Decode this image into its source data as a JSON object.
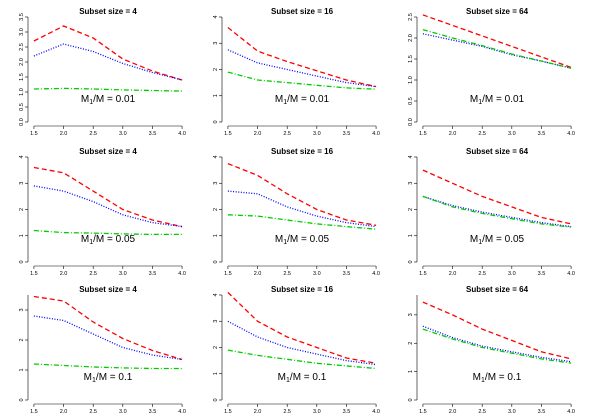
{
  "chart_data": {
    "type": "line",
    "x_ticks": [
      "1.5",
      "2.0",
      "2.5",
      "3.0",
      "3.5",
      "4.0"
    ],
    "series_styles": [
      {
        "key": "red",
        "color": "#ff0000",
        "dash": "dashed"
      },
      {
        "key": "blue",
        "color": "#0000ff",
        "dash": "dotted"
      },
      {
        "key": "green",
        "color": "#00cc00",
        "dash": "dotdash"
      }
    ],
    "panels": [
      {
        "title": "Subset size = 4",
        "annotation_main": "M",
        "annotation_sub": "1",
        "annotation_rest": "/M = 0.01",
        "ylim": [
          0,
          3.5
        ],
        "y_ticks": [
          "0.0",
          "0.5",
          "1.0",
          "1.5",
          "2.0",
          "2.5",
          "3.0",
          "3.5"
        ],
        "x": [
          1.5,
          2.0,
          2.5,
          3.0,
          3.5,
          4.0
        ],
        "red": [
          2.7,
          3.2,
          2.8,
          2.1,
          1.7,
          1.4
        ],
        "blue": [
          2.2,
          2.6,
          2.35,
          1.95,
          1.65,
          1.4
        ],
        "green": [
          1.1,
          1.12,
          1.1,
          1.07,
          1.05,
          1.03
        ]
      },
      {
        "title": "Subset size = 16",
        "annotation_main": "M",
        "annotation_sub": "1",
        "annotation_rest": "/M = 0.01",
        "ylim": [
          0,
          4
        ],
        "y_ticks": [
          "0",
          "1",
          "2",
          "3",
          "4"
        ],
        "x": [
          1.5,
          2.0,
          2.5,
          3.0,
          3.5,
          4.0
        ],
        "red": [
          3.6,
          2.7,
          2.3,
          1.95,
          1.6,
          1.35
        ],
        "blue": [
          2.75,
          2.25,
          2.0,
          1.75,
          1.5,
          1.35
        ],
        "green": [
          1.9,
          1.6,
          1.5,
          1.4,
          1.3,
          1.25
        ]
      },
      {
        "title": "Subset size = 64",
        "annotation_main": "M",
        "annotation_sub": "1",
        "annotation_rest": "/M = 0.01",
        "ylim": [
          0,
          2.5
        ],
        "y_ticks": [
          "0.0",
          "0.5",
          "1.0",
          "1.5",
          "2.0",
          "2.5"
        ],
        "x": [
          1.5,
          2.0,
          2.5,
          3.0,
          3.5,
          4.0
        ],
        "red": [
          2.55,
          2.3,
          2.05,
          1.8,
          1.55,
          1.3
        ],
        "blue": [
          2.1,
          1.95,
          1.8,
          1.6,
          1.45,
          1.28
        ],
        "green": [
          2.2,
          2.0,
          1.82,
          1.62,
          1.45,
          1.28
        ]
      },
      {
        "title": "Subset size = 4",
        "annotation_main": "M",
        "annotation_sub": "1",
        "annotation_rest": "/M = 0.05",
        "ylim": [
          0,
          4
        ],
        "y_ticks": [
          "0",
          "1",
          "2",
          "3",
          "4"
        ],
        "x": [
          1.5,
          2.0,
          2.5,
          3.0,
          3.5,
          4.0
        ],
        "red": [
          3.6,
          3.4,
          2.7,
          2.0,
          1.6,
          1.35
        ],
        "blue": [
          2.9,
          2.7,
          2.3,
          1.8,
          1.5,
          1.35
        ],
        "green": [
          1.2,
          1.12,
          1.1,
          1.07,
          1.05,
          1.05
        ]
      },
      {
        "title": "Subset size = 16",
        "annotation_main": "M",
        "annotation_sub": "1",
        "annotation_rest": "/M = 0.05",
        "ylim": [
          0,
          4
        ],
        "y_ticks": [
          "0",
          "1",
          "2",
          "3",
          "4"
        ],
        "x": [
          1.5,
          2.0,
          2.5,
          3.0,
          3.5,
          4.0
        ],
        "red": [
          3.75,
          3.3,
          2.6,
          2.0,
          1.6,
          1.4
        ],
        "blue": [
          2.7,
          2.6,
          2.1,
          1.75,
          1.5,
          1.35
        ],
        "green": [
          1.8,
          1.75,
          1.6,
          1.45,
          1.35,
          1.25
        ]
      },
      {
        "title": "Subset size = 64",
        "annotation_main": "M",
        "annotation_sub": "1",
        "annotation_rest": "/M = 0.05",
        "ylim": [
          0,
          4
        ],
        "y_ticks": [
          "0",
          "1",
          "2",
          "3",
          "4"
        ],
        "x": [
          1.5,
          2.0,
          2.5,
          3.0,
          3.5,
          4.0
        ],
        "red": [
          3.5,
          3.0,
          2.5,
          2.1,
          1.7,
          1.45
        ],
        "blue": [
          2.5,
          2.15,
          1.9,
          1.7,
          1.5,
          1.35
        ],
        "green": [
          2.5,
          2.1,
          1.85,
          1.65,
          1.45,
          1.33
        ]
      },
      {
        "title": "Subset size = 4",
        "annotation_main": "M",
        "annotation_sub": "1",
        "annotation_rest": "/M = 0.1",
        "ylim": [
          0,
          3.5
        ],
        "y_ticks": [
          "0",
          "1",
          "2",
          "3"
        ],
        "x": [
          1.5,
          2.0,
          2.5,
          3.0,
          3.5,
          4.0
        ],
        "red": [
          3.45,
          3.3,
          2.6,
          2.05,
          1.65,
          1.35
        ],
        "blue": [
          2.8,
          2.65,
          2.2,
          1.75,
          1.5,
          1.35
        ],
        "green": [
          1.2,
          1.15,
          1.1,
          1.07,
          1.05,
          1.05
        ]
      },
      {
        "title": "Subset size = 16",
        "annotation_main": "M",
        "annotation_sub": "1",
        "annotation_rest": "/M = 0.1",
        "ylim": [
          0,
          4
        ],
        "y_ticks": [
          "0",
          "1",
          "2",
          "3",
          "4"
        ],
        "x": [
          1.5,
          2.0,
          2.5,
          3.0,
          3.5,
          4.0
        ],
        "red": [
          4.1,
          3.0,
          2.4,
          2.0,
          1.6,
          1.4
        ],
        "blue": [
          3.0,
          2.4,
          2.0,
          1.75,
          1.5,
          1.35
        ],
        "green": [
          1.9,
          1.7,
          1.55,
          1.4,
          1.3,
          1.2
        ]
      },
      {
        "title": "Subset size = 64",
        "annotation_main": "M",
        "annotation_sub": "1",
        "annotation_rest": "/M = 0.1",
        "ylim": [
          0,
          3.7
        ],
        "y_ticks": [
          "0",
          "1",
          "2",
          "3"
        ],
        "x": [
          1.5,
          2.0,
          2.5,
          3.0,
          3.5,
          4.0
        ],
        "red": [
          3.45,
          3.0,
          2.5,
          2.1,
          1.7,
          1.45
        ],
        "blue": [
          2.6,
          2.2,
          1.9,
          1.7,
          1.5,
          1.35
        ],
        "green": [
          2.5,
          2.15,
          1.85,
          1.65,
          1.45,
          1.3
        ]
      }
    ]
  }
}
